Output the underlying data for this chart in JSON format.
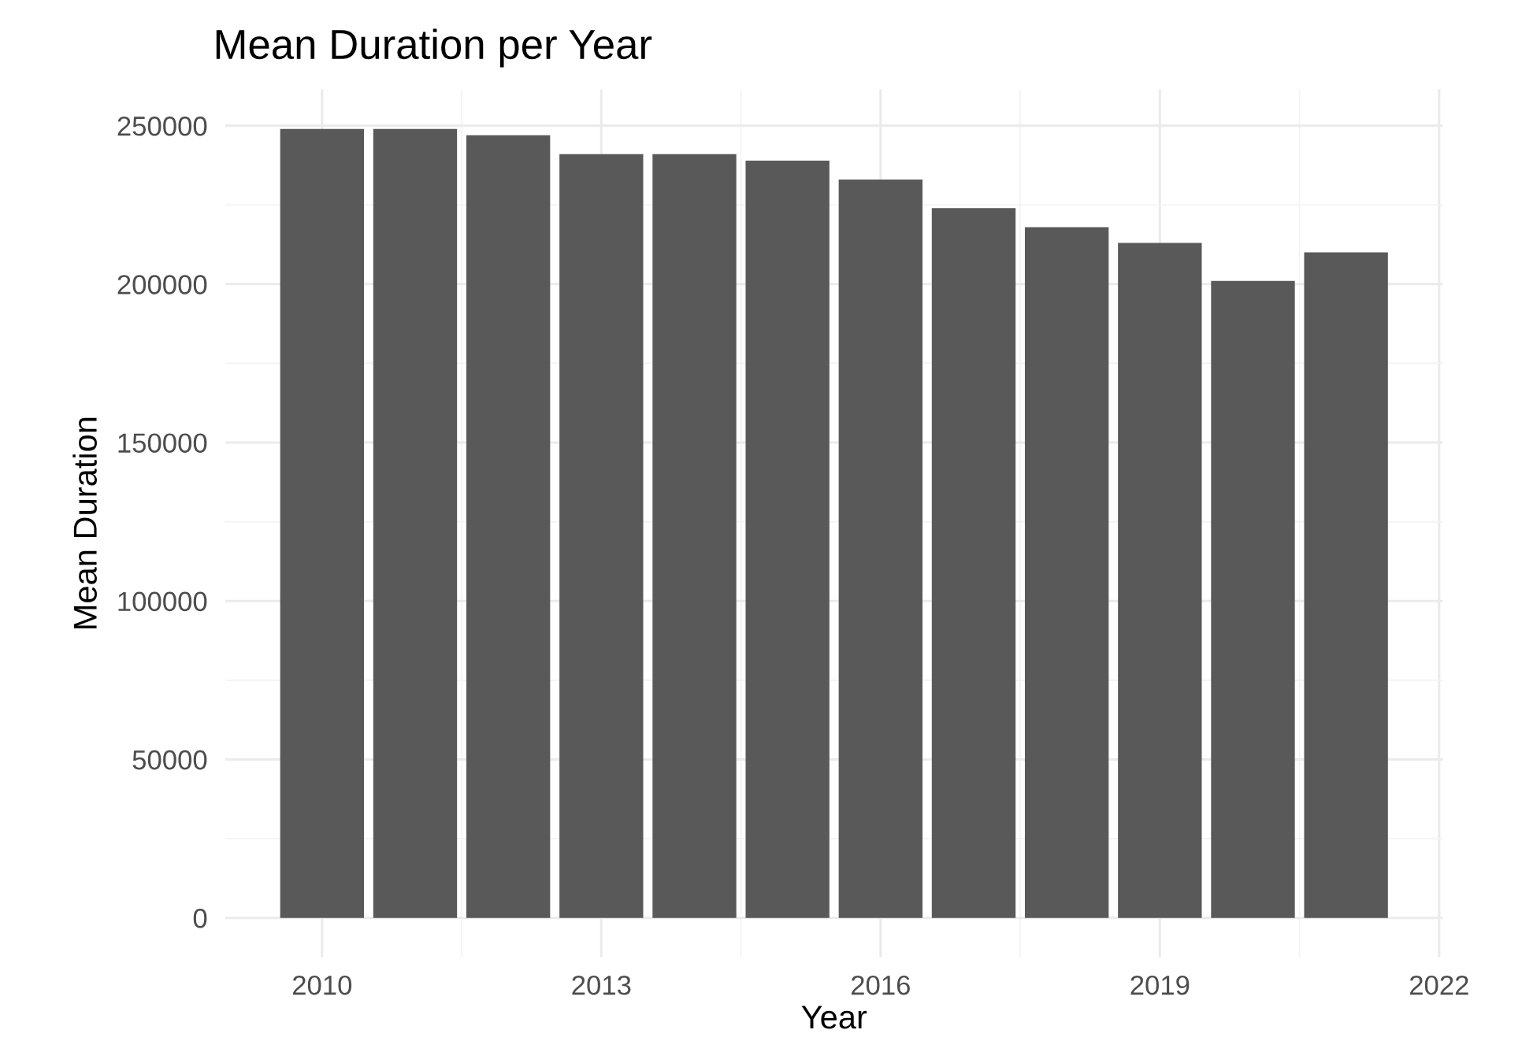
{
  "chart_data": {
    "type": "bar",
    "title": "Mean Duration per Year",
    "xlabel": "Year",
    "ylabel": "Mean Duration",
    "x": [
      2010,
      2011,
      2012,
      2013,
      2014,
      2015,
      2016,
      2017,
      2018,
      2019,
      2020,
      2021
    ],
    "values": [
      249000,
      249000,
      247000,
      241000,
      241000,
      239000,
      233000,
      224000,
      218000,
      213000,
      201000,
      210000
    ],
    "color": "#595959",
    "xlim": [
      2008.96,
      2022.04
    ],
    "xticks": [
      2010,
      2013,
      2016,
      2019,
      2022
    ],
    "ylim": [
      -12450,
      261450
    ],
    "yticks": [
      0,
      50000,
      100000,
      150000,
      200000,
      250000
    ],
    "grid": true
  }
}
